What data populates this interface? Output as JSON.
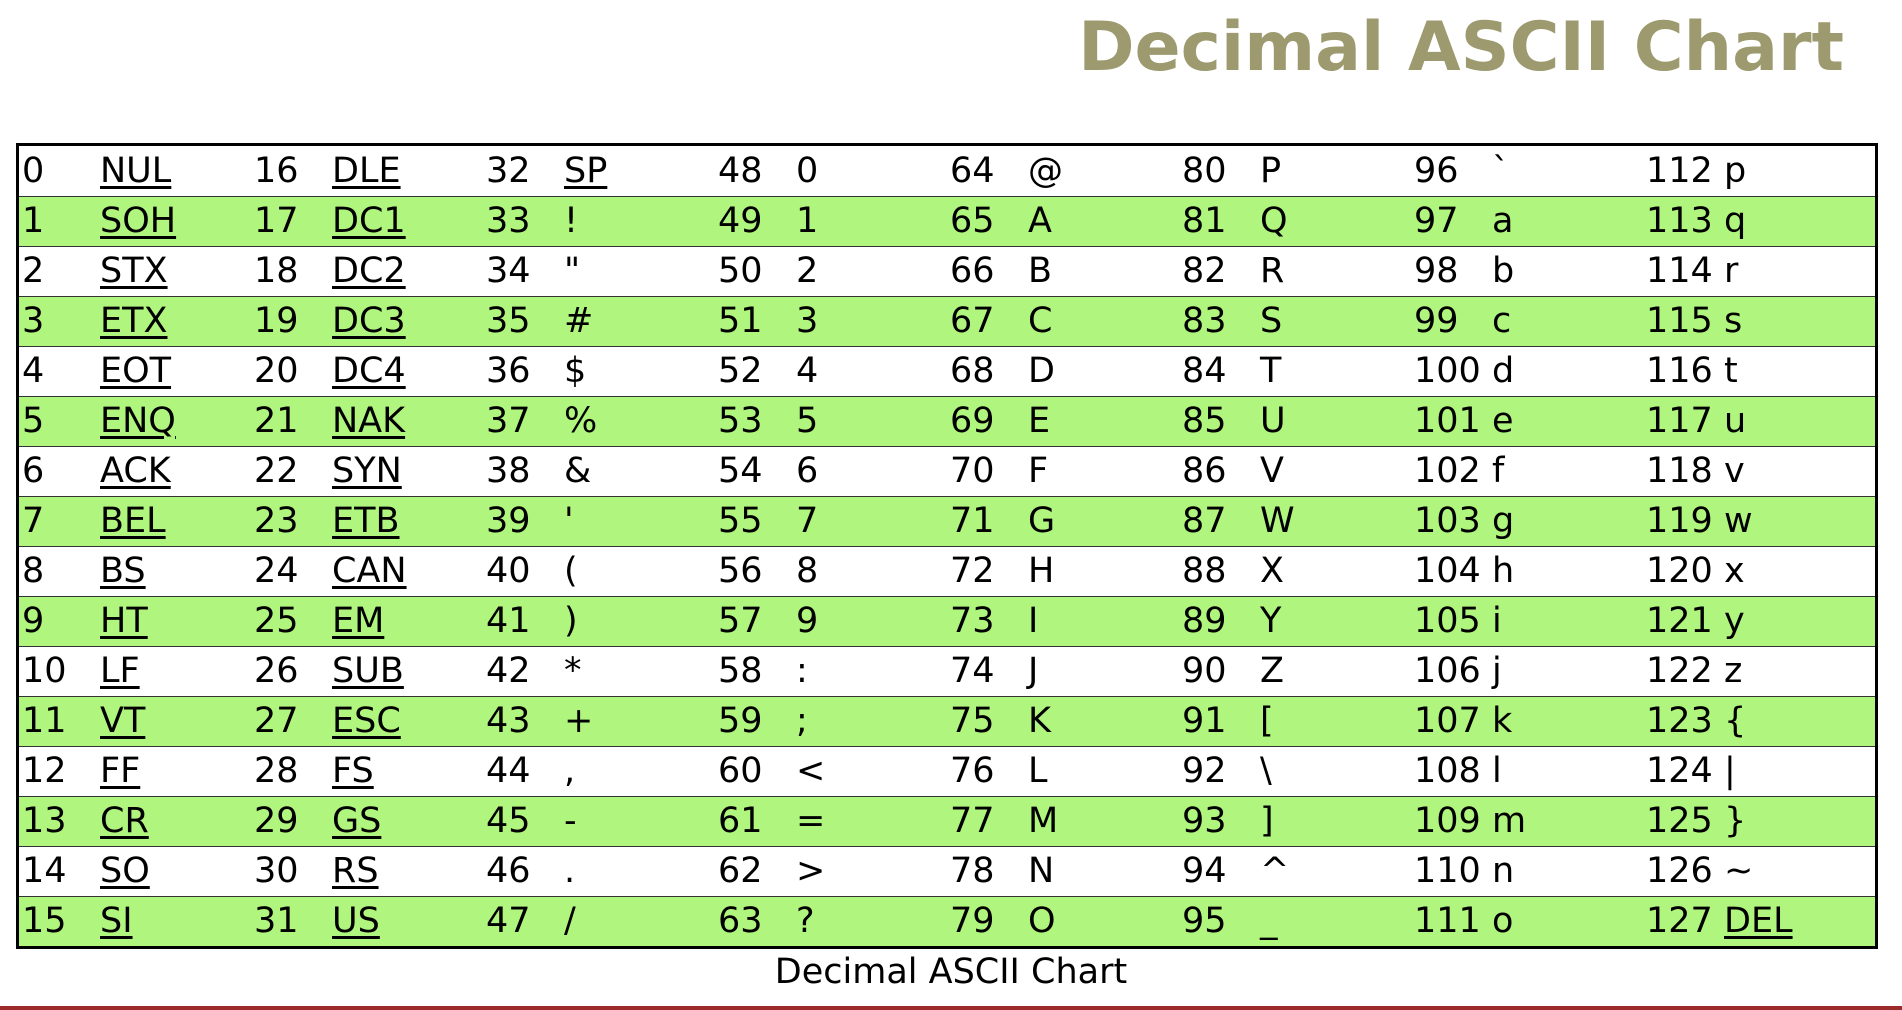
{
  "title": "Decimal ASCII Chart",
  "caption": "Decimal ASCII Chart",
  "colors": {
    "title": "#9c9a6e",
    "row_highlight": "#b0f57e",
    "bottom_rule": "#9b2b2b"
  },
  "table": {
    "columns": 8,
    "rows_per_column": 16,
    "control_codes_underlined": true,
    "rows": [
      [
        [
          "0",
          "NUL",
          true
        ],
        [
          "16",
          "DLE",
          true
        ],
        [
          "32",
          "SP",
          true
        ],
        [
          "48",
          "0",
          false
        ],
        [
          "64",
          "@",
          false
        ],
        [
          "80",
          "P",
          false
        ],
        [
          "96",
          "`",
          false
        ],
        [
          "112",
          "p",
          false
        ]
      ],
      [
        [
          "1",
          "SOH",
          true
        ],
        [
          "17",
          "DC1",
          true
        ],
        [
          "33",
          "!",
          false
        ],
        [
          "49",
          "1",
          false
        ],
        [
          "65",
          "A",
          false
        ],
        [
          "81",
          "Q",
          false
        ],
        [
          "97",
          "a",
          false
        ],
        [
          "113",
          "q",
          false
        ]
      ],
      [
        [
          "2",
          "STX",
          true
        ],
        [
          "18",
          "DC2",
          true
        ],
        [
          "34",
          "\"",
          false
        ],
        [
          "50",
          "2",
          false
        ],
        [
          "66",
          "B",
          false
        ],
        [
          "82",
          "R",
          false
        ],
        [
          "98",
          "b",
          false
        ],
        [
          "114",
          "r",
          false
        ]
      ],
      [
        [
          "3",
          "ETX",
          true
        ],
        [
          "19",
          "DC3",
          true
        ],
        [
          "35",
          "#",
          false
        ],
        [
          "51",
          "3",
          false
        ],
        [
          "67",
          "C",
          false
        ],
        [
          "83",
          "S",
          false
        ],
        [
          "99",
          "c",
          false
        ],
        [
          "115",
          "s",
          false
        ]
      ],
      [
        [
          "4",
          "EOT",
          true
        ],
        [
          "20",
          "DC4",
          true
        ],
        [
          "36",
          "$",
          false
        ],
        [
          "52",
          "4",
          false
        ],
        [
          "68",
          "D",
          false
        ],
        [
          "84",
          "T",
          false
        ],
        [
          "100",
          "d",
          false
        ],
        [
          "116",
          "t",
          false
        ]
      ],
      [
        [
          "5",
          "ENQ",
          true
        ],
        [
          "21",
          "NAK",
          true
        ],
        [
          "37",
          "%",
          false
        ],
        [
          "53",
          "5",
          false
        ],
        [
          "69",
          "E",
          false
        ],
        [
          "85",
          "U",
          false
        ],
        [
          "101",
          "e",
          false
        ],
        [
          "117",
          "u",
          false
        ]
      ],
      [
        [
          "6",
          "ACK",
          true
        ],
        [
          "22",
          "SYN",
          true
        ],
        [
          "38",
          "&",
          false
        ],
        [
          "54",
          "6",
          false
        ],
        [
          "70",
          "F",
          false
        ],
        [
          "86",
          "V",
          false
        ],
        [
          "102",
          "f",
          false
        ],
        [
          "118",
          "v",
          false
        ]
      ],
      [
        [
          "7",
          "BEL",
          true
        ],
        [
          "23",
          "ETB",
          true
        ],
        [
          "39",
          "'",
          false
        ],
        [
          "55",
          "7",
          false
        ],
        [
          "71",
          "G",
          false
        ],
        [
          "87",
          "W",
          false
        ],
        [
          "103",
          "g",
          false
        ],
        [
          "119",
          "w",
          false
        ]
      ],
      [
        [
          "8",
          "BS",
          true
        ],
        [
          "24",
          "CAN",
          true
        ],
        [
          "40",
          "(",
          false
        ],
        [
          "56",
          "8",
          false
        ],
        [
          "72",
          "H",
          false
        ],
        [
          "88",
          "X",
          false
        ],
        [
          "104",
          "h",
          false
        ],
        [
          "120",
          "x",
          false
        ]
      ],
      [
        [
          "9",
          "HT",
          true
        ],
        [
          "25",
          "EM",
          true
        ],
        [
          "41",
          ")",
          false
        ],
        [
          "57",
          "9",
          false
        ],
        [
          "73",
          "I",
          false
        ],
        [
          "89",
          "Y",
          false
        ],
        [
          "105",
          "i",
          false
        ],
        [
          "121",
          "y",
          false
        ]
      ],
      [
        [
          "10",
          "LF",
          true
        ],
        [
          "26",
          "SUB",
          true
        ],
        [
          "42",
          "*",
          false
        ],
        [
          "58",
          ":",
          false
        ],
        [
          "74",
          "J",
          false
        ],
        [
          "90",
          "Z",
          false
        ],
        [
          "106",
          "j",
          false
        ],
        [
          "122",
          "z",
          false
        ]
      ],
      [
        [
          "11",
          "VT",
          true
        ],
        [
          "27",
          "ESC",
          true
        ],
        [
          "43",
          "+",
          false
        ],
        [
          "59",
          ";",
          false
        ],
        [
          "75",
          "K",
          false
        ],
        [
          "91",
          "[",
          false
        ],
        [
          "107",
          "k",
          false
        ],
        [
          "123",
          "{",
          false
        ]
      ],
      [
        [
          "12",
          "FF",
          true
        ],
        [
          "28",
          "FS",
          true
        ],
        [
          "44",
          ",",
          false
        ],
        [
          "60",
          "<",
          false
        ],
        [
          "76",
          "L",
          false
        ],
        [
          "92",
          "\\",
          false
        ],
        [
          "108",
          "l",
          false
        ],
        [
          "124",
          "|",
          false
        ]
      ],
      [
        [
          "13",
          "CR",
          true
        ],
        [
          "29",
          "GS",
          true
        ],
        [
          "45",
          "-",
          false
        ],
        [
          "61",
          "=",
          false
        ],
        [
          "77",
          "M",
          false
        ],
        [
          "93",
          "]",
          false
        ],
        [
          "109",
          "m",
          false
        ],
        [
          "125",
          "}",
          false
        ]
      ],
      [
        [
          "14",
          "SO",
          true
        ],
        [
          "30",
          "RS",
          true
        ],
        [
          "46",
          ".",
          false
        ],
        [
          "62",
          ">",
          false
        ],
        [
          "78",
          "N",
          false
        ],
        [
          "94",
          "^",
          false
        ],
        [
          "110",
          "n",
          false
        ],
        [
          "126",
          "~",
          false
        ]
      ],
      [
        [
          "15",
          "SI",
          true
        ],
        [
          "31",
          "US",
          true
        ],
        [
          "47",
          "/",
          false
        ],
        [
          "63",
          "?",
          false
        ],
        [
          "79",
          "O",
          false
        ],
        [
          "95",
          "_",
          false
        ],
        [
          "111",
          "o",
          false
        ],
        [
          "127",
          "DEL",
          true
        ]
      ]
    ]
  }
}
